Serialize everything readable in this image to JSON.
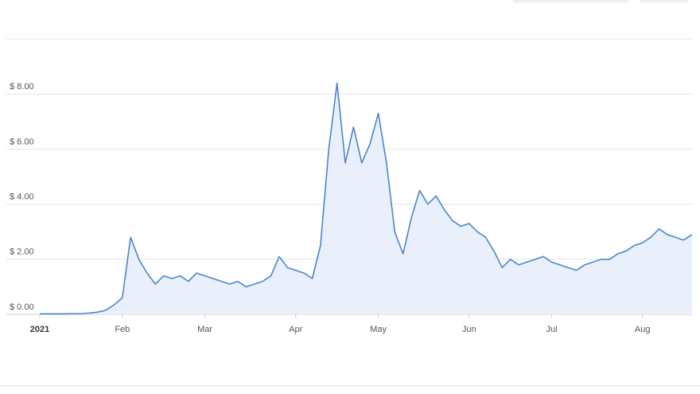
{
  "chart_data": {
    "type": "line",
    "categories": [
      "2021",
      null,
      null,
      null,
      null,
      null,
      null,
      null,
      null,
      null,
      "Feb",
      null,
      null,
      null,
      null,
      null,
      null,
      null,
      null,
      null,
      "Mar",
      null,
      null,
      null,
      null,
      null,
      null,
      null,
      null,
      null,
      null,
      "Apr",
      null,
      null,
      null,
      null,
      null,
      null,
      null,
      null,
      null,
      "May",
      null,
      null,
      null,
      null,
      null,
      null,
      null,
      null,
      null,
      null,
      "Jun",
      null,
      null,
      null,
      null,
      null,
      null,
      null,
      null,
      null,
      "Jul",
      null,
      null,
      null,
      null,
      null,
      null,
      null,
      null,
      null,
      null,
      "Aug",
      null,
      null,
      null,
      null,
      null,
      null
    ],
    "series": [
      {
        "color": "#4a86c8",
        "values": [
          0.02,
          0.02,
          0.02,
          0.02,
          0.03,
          0.03,
          0.05,
          0.08,
          0.15,
          0.35,
          0.6,
          2.8,
          2.0,
          1.5,
          1.1,
          1.4,
          1.3,
          1.4,
          1.2,
          1.5,
          1.4,
          1.3,
          1.2,
          1.1,
          1.2,
          1.0,
          1.1,
          1.2,
          1.4,
          2.1,
          1.7,
          1.6,
          1.5,
          1.3,
          2.5,
          6.0,
          8.4,
          5.5,
          6.8,
          5.5,
          6.2,
          7.3,
          5.5,
          3.0,
          2.2,
          3.5,
          4.5,
          4.0,
          4.3,
          3.8,
          3.4,
          3.2,
          3.3,
          3.0,
          2.8,
          2.3,
          1.7,
          2.0,
          1.8,
          1.9,
          2.0,
          2.1,
          1.9,
          1.8,
          1.7,
          1.6,
          1.8,
          1.9,
          2.0,
          2.0,
          2.2,
          2.3,
          2.5,
          2.6,
          2.8,
          3.1,
          2.9,
          2.8,
          2.7,
          2.9
        ]
      }
    ],
    "ylim": [
      0,
      10
    ],
    "yticks": [
      {
        "value": 0,
        "label": "$ 0.00"
      },
      {
        "value": 2,
        "label": "$ 2.00"
      },
      {
        "value": 4,
        "label": "$ 4.00"
      },
      {
        "value": 6,
        "label": "$ 6.00"
      },
      {
        "value": 8,
        "label": "$ 8.00"
      },
      10
    ],
    "grid": true
  }
}
